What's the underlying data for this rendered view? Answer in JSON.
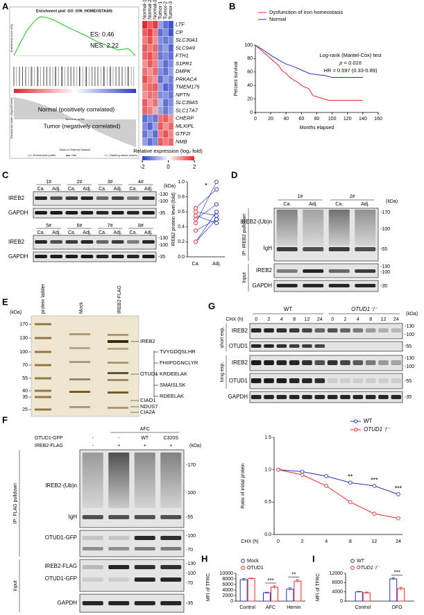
{
  "A": {
    "label": "A",
    "gsea": {
      "title": "Enrichment plot: GO_ION_HOMEOSTASIS",
      "es": "ES: 0.46",
      "nes": "NES: 2.22",
      "positive": "Normal (positively correlated)",
      "negative": "Tumor (negatively correlated)",
      "es_axis": "Enrichment score (ES)",
      "metric_axis": "Ranked list metric (Signal2Noise)",
      "rank_axis": "Rank in Ordered Dataset",
      "zero_cross": "Zero cross at 900",
      "legend": [
        "Enrichment profile",
        "Hits",
        "Ranking metric scores"
      ]
    },
    "heatmap": {
      "columns": [
        "Normal-1",
        "Normal-2",
        "Normal-3",
        "Tumor-1",
        "Tumor-2",
        "Tumor-3"
      ],
      "genes": [
        "LTF",
        "CP",
        "SLC30A1",
        "SLC9A9",
        "FTH1",
        "S1PR1",
        "DMPK",
        "PRKACA",
        "TMEM175",
        "NPTN",
        "SLC39A5",
        "SLC17A7",
        "CHERP",
        "MLXIPL",
        "GTF2I",
        "NMB"
      ],
      "values": [
        [
          2,
          1.5,
          1.8,
          -1,
          -1.5,
          -1.8
        ],
        [
          1.5,
          1.8,
          1.2,
          -1.5,
          -1.2,
          -1.8
        ],
        [
          1.2,
          1.6,
          1,
          -1.2,
          -1.4,
          -1.2
        ],
        [
          1.5,
          1.2,
          1.4,
          -1.3,
          -1,
          -1.6
        ],
        [
          1.4,
          1.6,
          1.2,
          -1.4,
          -1.2,
          -1.5
        ],
        [
          1,
          1.5,
          1.2,
          -1,
          -1.5,
          -1.2
        ],
        [
          1.3,
          1,
          1.4,
          -1.2,
          -1.5,
          -1
        ],
        [
          1.6,
          1.2,
          1,
          -1.5,
          -1,
          -1.3
        ],
        [
          1.2,
          1.4,
          1.5,
          -1,
          -1.6,
          -1.4
        ],
        [
          1,
          1.3,
          1.2,
          -1.2,
          -1.1,
          -1.4
        ],
        [
          1.5,
          1,
          1.3,
          -0.8,
          -1.5,
          -1.2
        ],
        [
          1.4,
          1.2,
          0.8,
          -1,
          -1.4,
          -1
        ],
        [
          -1.5,
          -1.2,
          -1.4,
          1.3,
          1.5,
          1
        ],
        [
          -1.2,
          -1.6,
          -1,
          1.5,
          1,
          1.4
        ],
        [
          -1.4,
          -1,
          -1.5,
          1.2,
          1.6,
          1.1
        ],
        [
          -1,
          -1.5,
          -1.2,
          1.5,
          1.2,
          1.4
        ]
      ],
      "colorbar_label": "Relative expression (log₂ fold)",
      "colorbar_lim": [
        -2,
        2
      ],
      "colorbar_ticks": [
        -2,
        0,
        2
      ],
      "colors": [
        "#2b3fc4",
        "#ffffff",
        "#e3262b"
      ]
    }
  },
  "B": {
    "label": "B",
    "chart": {
      "type": "line",
      "series": [
        {
          "name": "Dysfunction of iron homeostasis",
          "color": "#e3262b",
          "x": [
            0,
            5,
            10,
            15,
            20,
            25,
            30,
            35,
            40,
            45,
            50,
            55,
            60,
            70,
            75,
            95,
            140
          ],
          "values": [
            100,
            95,
            90,
            85,
            80,
            75,
            70,
            62,
            58,
            52,
            48,
            45,
            40,
            35,
            25,
            18,
            18
          ]
        },
        {
          "name": "Normal",
          "color": "#2233bb",
          "x": [
            0,
            10,
            20,
            30,
            40,
            50,
            60,
            70,
            80,
            90,
            100,
            110,
            120,
            140
          ],
          "values": [
            100,
            93,
            85,
            78,
            72,
            68,
            63,
            58,
            56,
            55,
            52,
            52,
            52,
            52
          ]
        }
      ],
      "annotations": [
        "Log-rank (Mantel-Cox) test",
        "p = 0.016",
        "HR = 0.597 (0.33-0.89)"
      ],
      "xlabel": "Months elapsed",
      "ylabel": "Percent survival",
      "xlim": [
        0,
        160
      ],
      "xticks": [
        0,
        20,
        40,
        60,
        80,
        100,
        120,
        140,
        160
      ],
      "ylim": [
        0,
        100
      ],
      "yticks": [
        0,
        20,
        40,
        60,
        80,
        100
      ]
    }
  },
  "C": {
    "label": "C",
    "samples": [
      "1#",
      "2#",
      "3#",
      "4#",
      "5#",
      "6#",
      "7#",
      "8#"
    ],
    "lanes": [
      "Ca.",
      "Adj."
    ],
    "rows": [
      "IREB2",
      "GAPDH"
    ],
    "kda_unit": "(kDa)",
    "kda": [
      "-130",
      "-100",
      "-35"
    ],
    "chart": {
      "type": "scatter",
      "categories": [
        "Ca.",
        "Adj."
      ],
      "ca": [
        0.35,
        0.2,
        0.55,
        0.6,
        0.65,
        0.45,
        0.2,
        0.5
      ],
      "adj": [
        0.5,
        0.6,
        0.45,
        0.55,
        0.9,
        1.0,
        0.5,
        0.7
      ],
      "point_color": "#e3262b",
      "line_color": "#2233bb",
      "ylabel": "IREB2 protein level (fold)",
      "ylim": [
        0,
        1
      ],
      "yticks": [
        {
          "value": 0,
          "label": "0.0"
        },
        0.2,
        0.4,
        0.6,
        0.8,
        {
          "value": 1,
          "label": "1.0"
        }
      ],
      "significance": "*"
    }
  },
  "D": {
    "label": "D",
    "samples": [
      "1#",
      "2#"
    ],
    "lanes": [
      "Ca.",
      "Adj."
    ],
    "kda_unit": "(kDa)",
    "groups": [
      "IP: IREB2 pulldown",
      "Input"
    ],
    "rows": [
      "IREB2-(Ub)n",
      "IgH",
      "IREB2",
      "GAPDH"
    ],
    "kda": [
      "-170",
      "-100",
      "-55",
      "-130",
      "-100",
      "-35"
    ]
  },
  "E": {
    "label": "E",
    "kda_unit": "(kDa)",
    "lanes": [
      "protein ladder",
      "Mock",
      "IREB2-FLAG"
    ],
    "ladder": [
      170,
      130,
      100,
      70,
      55,
      40,
      35,
      25
    ],
    "bands": [
      "IREB2",
      "OTUD1",
      "CIAO1",
      "NDUS7",
      "CIA2A"
    ],
    "peptides": [
      "TVYGDQSLHR",
      "FHIIPDGNCLYR",
      "KRDEELAK",
      "SMAISLSK",
      "RDEELAK"
    ]
  },
  "F": {
    "label": "F",
    "treatment": "AFC",
    "conditions": [
      {
        "name": "OTUD1-GFP",
        "lanes": [
          "-",
          "-",
          "WT",
          "C320S"
        ]
      },
      {
        "name": "IREB2-FLAG",
        "lanes": [
          "-",
          "+",
          "+",
          "+"
        ]
      }
    ],
    "kda_unit": "(kDa)",
    "groups": [
      "IP: FLAG pulldown",
      "Input"
    ],
    "rows": [
      "IREB2-(Ub)n",
      "IgH",
      "OTUD1-GFP",
      "IREB2-FLAG",
      "OTUD1-GFP",
      "GAPDH"
    ],
    "kda": [
      "-170",
      "-100",
      "-55",
      "-100",
      "-70",
      "-130",
      "-100",
      "-70",
      "-35"
    ]
  },
  "G": {
    "label": "G",
    "kda_unit": "(kDa)",
    "exposures": [
      "short exp.",
      "long exp."
    ],
    "rows": [
      "IREB2",
      "OTUD1",
      "IREB2",
      "OTUD1",
      "GAPDH"
    ],
    "kda": [
      "-130",
      "-100",
      "-55",
      "-130",
      "-100",
      "-55",
      "-35"
    ],
    "chart": {
      "type": "line",
      "xlabel": "CHX (h)",
      "categories": [
        0,
        2,
        4,
        8,
        12,
        24
      ],
      "series": [
        {
          "name": "WT",
          "color": "#2233bb",
          "values": [
            1,
            0.97,
            0.9,
            0.8,
            0.75,
            0.62
          ]
        },
        {
          "name": "OTUD1⁻/⁻",
          "color": "#e3262b",
          "values": [
            1,
            0.92,
            0.75,
            0.5,
            0.32,
            0.25
          ]
        }
      ],
      "significance": [
        null,
        null,
        null,
        "**",
        "***",
        "***"
      ],
      "ylabel": "Ratio of initial protein",
      "ylim": [
        0,
        1.5
      ],
      "yticks": [
        {
          "value": 0,
          "label": "0.0"
        },
        0.5,
        {
          "value": 1,
          "label": "1.0"
        },
        1.5
      ]
    }
  },
  "H": {
    "label": "H",
    "chart": {
      "type": "bar",
      "categories": [
        "Control",
        "AFC",
        "Hemin"
      ],
      "series": [
        {
          "name": "Mock",
          "color": "#2233bb",
          "values": [
            7700,
            3000,
            4300
          ],
          "errors": [
            400,
            200,
            500
          ]
        },
        {
          "name": "OTUD1",
          "color": "#e3262b",
          "values": [
            8100,
            5000,
            7200
          ],
          "errors": [
            200,
            500,
            500
          ]
        }
      ],
      "significance": [
        null,
        "***",
        "**"
      ],
      "ylabel": "MFI of TFRC",
      "ylim": [
        0,
        10000
      ],
      "yticks": [
        0,
        2000,
        4000,
        6000,
        8000,
        10000
      ]
    }
  },
  "I": {
    "label": "I",
    "chart": {
      "type": "bar",
      "categories": [
        "Control",
        "DFO"
      ],
      "series": [
        {
          "name": "WT",
          "color": "#2233bb",
          "values": [
            4000,
            9600
          ],
          "errors": [
            200,
            500
          ]
        },
        {
          "name": "OTUD1⁻/⁻",
          "color": "#e3262b",
          "values": [
            3600,
            5400
          ],
          "errors": [
            300,
            600
          ]
        }
      ],
      "significance": [
        null,
        "***"
      ],
      "ylabel": "MFI of TFRC",
      "ylim": [
        0,
        12000
      ],
      "yticks": [
        0,
        4000,
        8000,
        12000
      ]
    }
  }
}
